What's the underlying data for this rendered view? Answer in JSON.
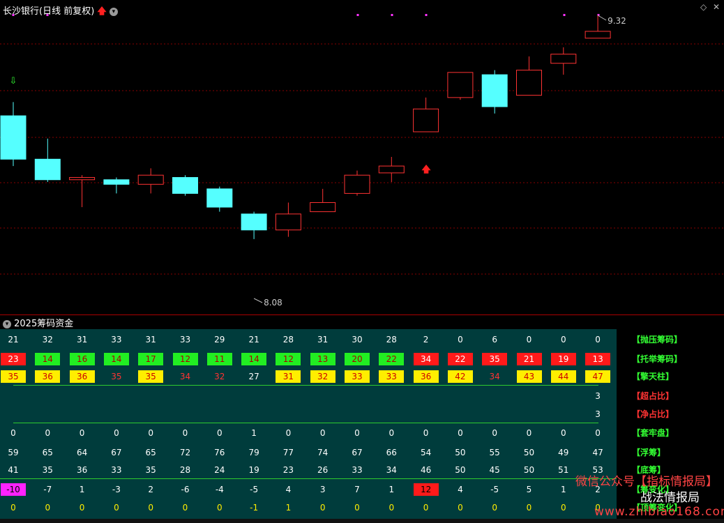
{
  "title": "长沙银行(日线 前复权)",
  "high_label": "9.32",
  "low_label": "8.08",
  "panel2_title": "2025筹码资金",
  "colors": {
    "up": "#ff3333",
    "down": "#55ffff",
    "bg": "#000000",
    "grid": "#8a0000"
  },
  "candles": [
    {
      "o": 8.88,
      "c": 8.69,
      "h": 8.94,
      "l": 8.66
    },
    {
      "o": 8.69,
      "c": 8.6,
      "h": 8.78,
      "l": 8.59
    },
    {
      "o": 8.6,
      "c": 8.61,
      "h": 8.62,
      "l": 8.48
    },
    {
      "o": 8.6,
      "c": 8.58,
      "h": 8.61,
      "l": 8.54
    },
    {
      "o": 8.58,
      "c": 8.62,
      "h": 8.65,
      "l": 8.54
    },
    {
      "o": 8.61,
      "c": 8.54,
      "h": 8.62,
      "l": 8.53
    },
    {
      "o": 8.56,
      "c": 8.48,
      "h": 8.57,
      "l": 8.46
    },
    {
      "o": 8.45,
      "c": 8.38,
      "h": 8.46,
      "l": 8.34
    },
    {
      "o": 8.38,
      "c": 8.45,
      "h": 8.5,
      "l": 8.35
    },
    {
      "o": 8.46,
      "c": 8.5,
      "h": 8.56,
      "l": 8.46
    },
    {
      "o": 8.54,
      "c": 8.62,
      "h": 8.64,
      "l": 8.53
    },
    {
      "o": 8.63,
      "c": 8.66,
      "h": 8.7,
      "l": 8.59
    },
    {
      "o": 8.81,
      "c": 8.91,
      "h": 8.96,
      "l": 8.81
    },
    {
      "o": 8.96,
      "c": 9.07,
      "h": 9.07,
      "l": 8.95
    },
    {
      "o": 9.06,
      "c": 8.92,
      "h": 9.08,
      "l": 8.89
    },
    {
      "o": 8.97,
      "c": 9.08,
      "h": 9.14,
      "l": 8.97
    },
    {
      "o": 9.11,
      "c": 9.15,
      "h": 9.18,
      "l": 9.06
    },
    {
      "o": 9.22,
      "c": 9.25,
      "h": 9.32,
      "l": 9.22
    }
  ],
  "rows": [
    {
      "label": "【抛压筹码】",
      "label_color": "#33ff33",
      "values": [
        "21",
        "32",
        "31",
        "33",
        "31",
        "33",
        "29",
        "21",
        "28",
        "31",
        "30",
        "28",
        "2",
        "0",
        "6",
        "0",
        "0",
        "0"
      ],
      "cells": [
        "w",
        "w",
        "w",
        "w",
        "w",
        "w",
        "w",
        "w",
        "w",
        "w",
        "w",
        "w",
        "w",
        "w",
        "w",
        "w",
        "w",
        "w"
      ]
    },
    {
      "label": "【托举筹码】",
      "label_color": "#33ff33",
      "values": [
        "23",
        "14",
        "16",
        "14",
        "17",
        "12",
        "11",
        "14",
        "12",
        "13",
        "20",
        "22",
        "34",
        "22",
        "35",
        "21",
        "19",
        "13"
      ],
      "cells": [
        "r",
        "g",
        "g",
        "g",
        "g",
        "g",
        "g",
        "g",
        "g",
        "g",
        "g",
        "g",
        "r",
        "r",
        "r",
        "r",
        "r",
        "r"
      ]
    },
    {
      "label": "【擎天柱】",
      "label_color": "#33ff33",
      "values": [
        "35",
        "36",
        "36",
        "35",
        "35",
        "34",
        "32",
        "27",
        "31",
        "32",
        "33",
        "33",
        "36",
        "42",
        "34",
        "43",
        "44",
        "47"
      ],
      "cells": [
        "y",
        "y",
        "y",
        "t",
        "y",
        "t",
        "t",
        "w",
        "y",
        "y",
        "y",
        "y",
        "y",
        "y",
        "t",
        "y",
        "y",
        "y"
      ]
    },
    {
      "label": "【超占比】",
      "label_color": "#ff3333",
      "values": [
        "",
        "",
        "",
        "",
        "",
        "",
        "",
        "",
        "",
        "",
        "",
        "",
        "",
        "",
        "",
        "",
        "",
        "3"
      ],
      "cells": [
        "w",
        "w",
        "w",
        "w",
        "w",
        "w",
        "w",
        "w",
        "w",
        "w",
        "w",
        "w",
        "w",
        "w",
        "w",
        "w",
        "w",
        "w"
      ]
    },
    {
      "label": "【净占比】",
      "label_color": "#ff3333",
      "values": [
        "",
        "",
        "",
        "",
        "",
        "",
        "",
        "",
        "",
        "",
        "",
        "",
        "",
        "",
        "",
        "",
        "",
        "3"
      ],
      "cells": [
        "w",
        "w",
        "w",
        "w",
        "w",
        "w",
        "w",
        "w",
        "w",
        "w",
        "w",
        "w",
        "w",
        "w",
        "w",
        "w",
        "w",
        "w"
      ]
    },
    {
      "label": "【套牢盘】",
      "label_color": "#33ff33",
      "values": [
        "0",
        "0",
        "0",
        "0",
        "0",
        "0",
        "0",
        "1",
        "0",
        "0",
        "0",
        "0",
        "0",
        "0",
        "0",
        "0",
        "0",
        "0"
      ],
      "cells": [
        "w",
        "w",
        "w",
        "w",
        "w",
        "w",
        "w",
        "w",
        "w",
        "w",
        "w",
        "w",
        "w",
        "w",
        "w",
        "w",
        "w",
        "w"
      ]
    },
    {
      "label": "【浮筹】",
      "label_color": "#33ff33",
      "values": [
        "59",
        "65",
        "64",
        "67",
        "65",
        "72",
        "76",
        "79",
        "77",
        "74",
        "67",
        "66",
        "54",
        "50",
        "55",
        "50",
        "49",
        "47"
      ],
      "cells": [
        "w",
        "w",
        "w",
        "w",
        "w",
        "w",
        "w",
        "w",
        "w",
        "w",
        "w",
        "w",
        "w",
        "w",
        "w",
        "w",
        "w",
        "w"
      ]
    },
    {
      "label": "【底筹】",
      "label_color": "#33ff33",
      "values": [
        "41",
        "35",
        "36",
        "33",
        "35",
        "28",
        "24",
        "19",
        "23",
        "26",
        "33",
        "34",
        "46",
        "50",
        "45",
        "50",
        "51",
        "53"
      ],
      "cells": [
        "w",
        "w",
        "w",
        "w",
        "w",
        "w",
        "w",
        "w",
        "w",
        "w",
        "w",
        "w",
        "w",
        "w",
        "w",
        "w",
        "w",
        "w"
      ]
    },
    {
      "label": "【筹变化】",
      "label_color": "#33ff33",
      "values": [
        "-10",
        "-7",
        "1",
        "-3",
        "2",
        "-6",
        "-4",
        "-5",
        "4",
        "3",
        "7",
        "1",
        "12",
        "4",
        "-5",
        "5",
        "1",
        "2"
      ],
      "cells": [
        "m",
        "w",
        "w",
        "w",
        "w",
        "w",
        "w",
        "w",
        "w",
        "w",
        "w",
        "w",
        "r",
        "w",
        "w",
        "w",
        "w",
        "w"
      ]
    },
    {
      "label": "【顶筹变化】",
      "label_color": "#33ff33",
      "values": [
        "0",
        "0",
        "0",
        "0",
        "0",
        "0",
        "0",
        "-1",
        "1",
        "0",
        "0",
        "0",
        "0",
        "0",
        "0",
        "0",
        "0",
        "0"
      ],
      "cells": [
        "yt",
        "yt",
        "yt",
        "yt",
        "yt",
        "yt",
        "yt",
        "yt",
        "yt",
        "yt",
        "yt",
        "yt",
        "yt",
        "yt",
        "yt",
        "yt",
        "yt",
        "yt"
      ]
    }
  ],
  "watermark": {
    "line1": "微信公众号【指标情报局】",
    "line2": "战法情报局",
    "line3": "www.zhibiao168.com"
  }
}
